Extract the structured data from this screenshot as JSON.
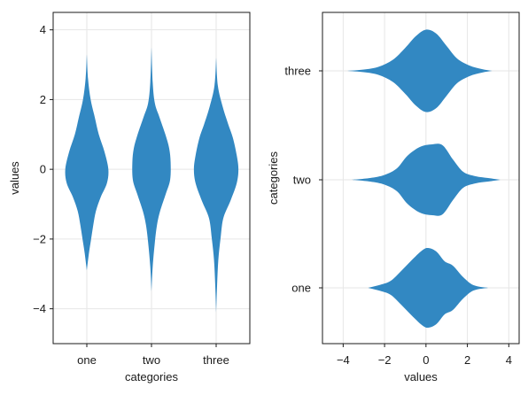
{
  "chart_data": [
    {
      "type": "violin",
      "orientation": "vertical",
      "xlabel": "categories",
      "ylabel": "values",
      "categories": [
        "one",
        "two",
        "three"
      ],
      "ylim": [
        -5.0,
        4.5
      ],
      "yticks": [
        4,
        2,
        0,
        -2,
        -4
      ],
      "ytick_labels": [
        "4",
        "2",
        "0",
        "−2",
        "−4"
      ],
      "grid": true,
      "color": "#2e86c1",
      "violins": [
        {
          "category": "one",
          "ymin": -2.9,
          "ymax": 3.3,
          "profile": [
            [
              3.3,
              0.0
            ],
            [
              2.6,
              0.05
            ],
            [
              2.0,
              0.16
            ],
            [
              1.5,
              0.33
            ],
            [
              1.0,
              0.5
            ],
            [
              0.5,
              0.74
            ],
            [
              0.0,
              0.9
            ],
            [
              -0.4,
              0.84
            ],
            [
              -0.8,
              0.58
            ],
            [
              -1.2,
              0.38
            ],
            [
              -1.6,
              0.27
            ],
            [
              -2.0,
              0.18
            ],
            [
              -2.4,
              0.09
            ],
            [
              -2.9,
              0.0
            ]
          ]
        },
        {
          "category": "two",
          "ymin": -3.5,
          "ymax": 3.5,
          "profile": [
            [
              3.5,
              0.0
            ],
            [
              2.5,
              0.05
            ],
            [
              1.9,
              0.14
            ],
            [
              1.5,
              0.33
            ],
            [
              1.0,
              0.58
            ],
            [
              0.6,
              0.74
            ],
            [
              0.2,
              0.8
            ],
            [
              -0.3,
              0.78
            ],
            [
              -0.7,
              0.6
            ],
            [
              -1.2,
              0.36
            ],
            [
              -1.6,
              0.23
            ],
            [
              -2.1,
              0.14
            ],
            [
              -2.8,
              0.05
            ],
            [
              -3.5,
              0.0
            ]
          ]
        },
        {
          "category": "three",
          "ymin": -4.1,
          "ymax": 3.2,
          "profile": [
            [
              3.2,
              0.0
            ],
            [
              2.4,
              0.07
            ],
            [
              1.8,
              0.27
            ],
            [
              1.3,
              0.5
            ],
            [
              0.9,
              0.7
            ],
            [
              0.4,
              0.86
            ],
            [
              0.0,
              0.93
            ],
            [
              -0.4,
              0.86
            ],
            [
              -0.9,
              0.6
            ],
            [
              -1.4,
              0.3
            ],
            [
              -2.0,
              0.18
            ],
            [
              -2.6,
              0.09
            ],
            [
              -3.3,
              0.04
            ],
            [
              -4.1,
              0.0
            ]
          ]
        }
      ]
    },
    {
      "type": "violin",
      "orientation": "horizontal",
      "xlabel": "values",
      "ylabel": "categories",
      "categories": [
        "one",
        "two",
        "three"
      ],
      "xlim": [
        -5.0,
        4.5
      ],
      "xticks": [
        -4,
        -2,
        0,
        2,
        4
      ],
      "xtick_labels": [
        "−4",
        "−2",
        "0",
        "2",
        "4"
      ],
      "grid": true,
      "color": "#2e86c1",
      "violins": [
        {
          "category": "one",
          "xmin": -2.8,
          "xmax": 3.0,
          "profile": [
            [
              -2.8,
              0.0
            ],
            [
              -2.2,
              0.07
            ],
            [
              -1.7,
              0.16
            ],
            [
              -1.2,
              0.38
            ],
            [
              -0.7,
              0.62
            ],
            [
              -0.2,
              0.84
            ],
            [
              0.1,
              0.9
            ],
            [
              0.5,
              0.82
            ],
            [
              0.9,
              0.6
            ],
            [
              1.3,
              0.5
            ],
            [
              1.8,
              0.24
            ],
            [
              2.3,
              0.06
            ],
            [
              3.0,
              0.0
            ]
          ]
        },
        {
          "category": "two",
          "xmin": -3.6,
          "xmax": 3.6,
          "profile": [
            [
              -3.6,
              0.0
            ],
            [
              -2.7,
              0.04
            ],
            [
              -2.0,
              0.11
            ],
            [
              -1.4,
              0.26
            ],
            [
              -0.9,
              0.54
            ],
            [
              -0.3,
              0.74
            ],
            [
              0.3,
              0.8
            ],
            [
              0.8,
              0.78
            ],
            [
              1.3,
              0.46
            ],
            [
              1.8,
              0.18
            ],
            [
              2.4,
              0.08
            ],
            [
              3.0,
              0.04
            ],
            [
              3.6,
              0.0
            ]
          ]
        },
        {
          "category": "three",
          "xmin": -3.8,
          "xmax": 3.2,
          "profile": [
            [
              -3.8,
              0.0
            ],
            [
              -3.0,
              0.03
            ],
            [
              -2.3,
              0.09
            ],
            [
              -1.6,
              0.25
            ],
            [
              -1.0,
              0.52
            ],
            [
              -0.5,
              0.78
            ],
            [
              0.0,
              0.93
            ],
            [
              0.5,
              0.84
            ],
            [
              1.0,
              0.56
            ],
            [
              1.5,
              0.28
            ],
            [
              2.1,
              0.12
            ],
            [
              2.7,
              0.04
            ],
            [
              3.2,
              0.0
            ]
          ]
        }
      ]
    }
  ]
}
